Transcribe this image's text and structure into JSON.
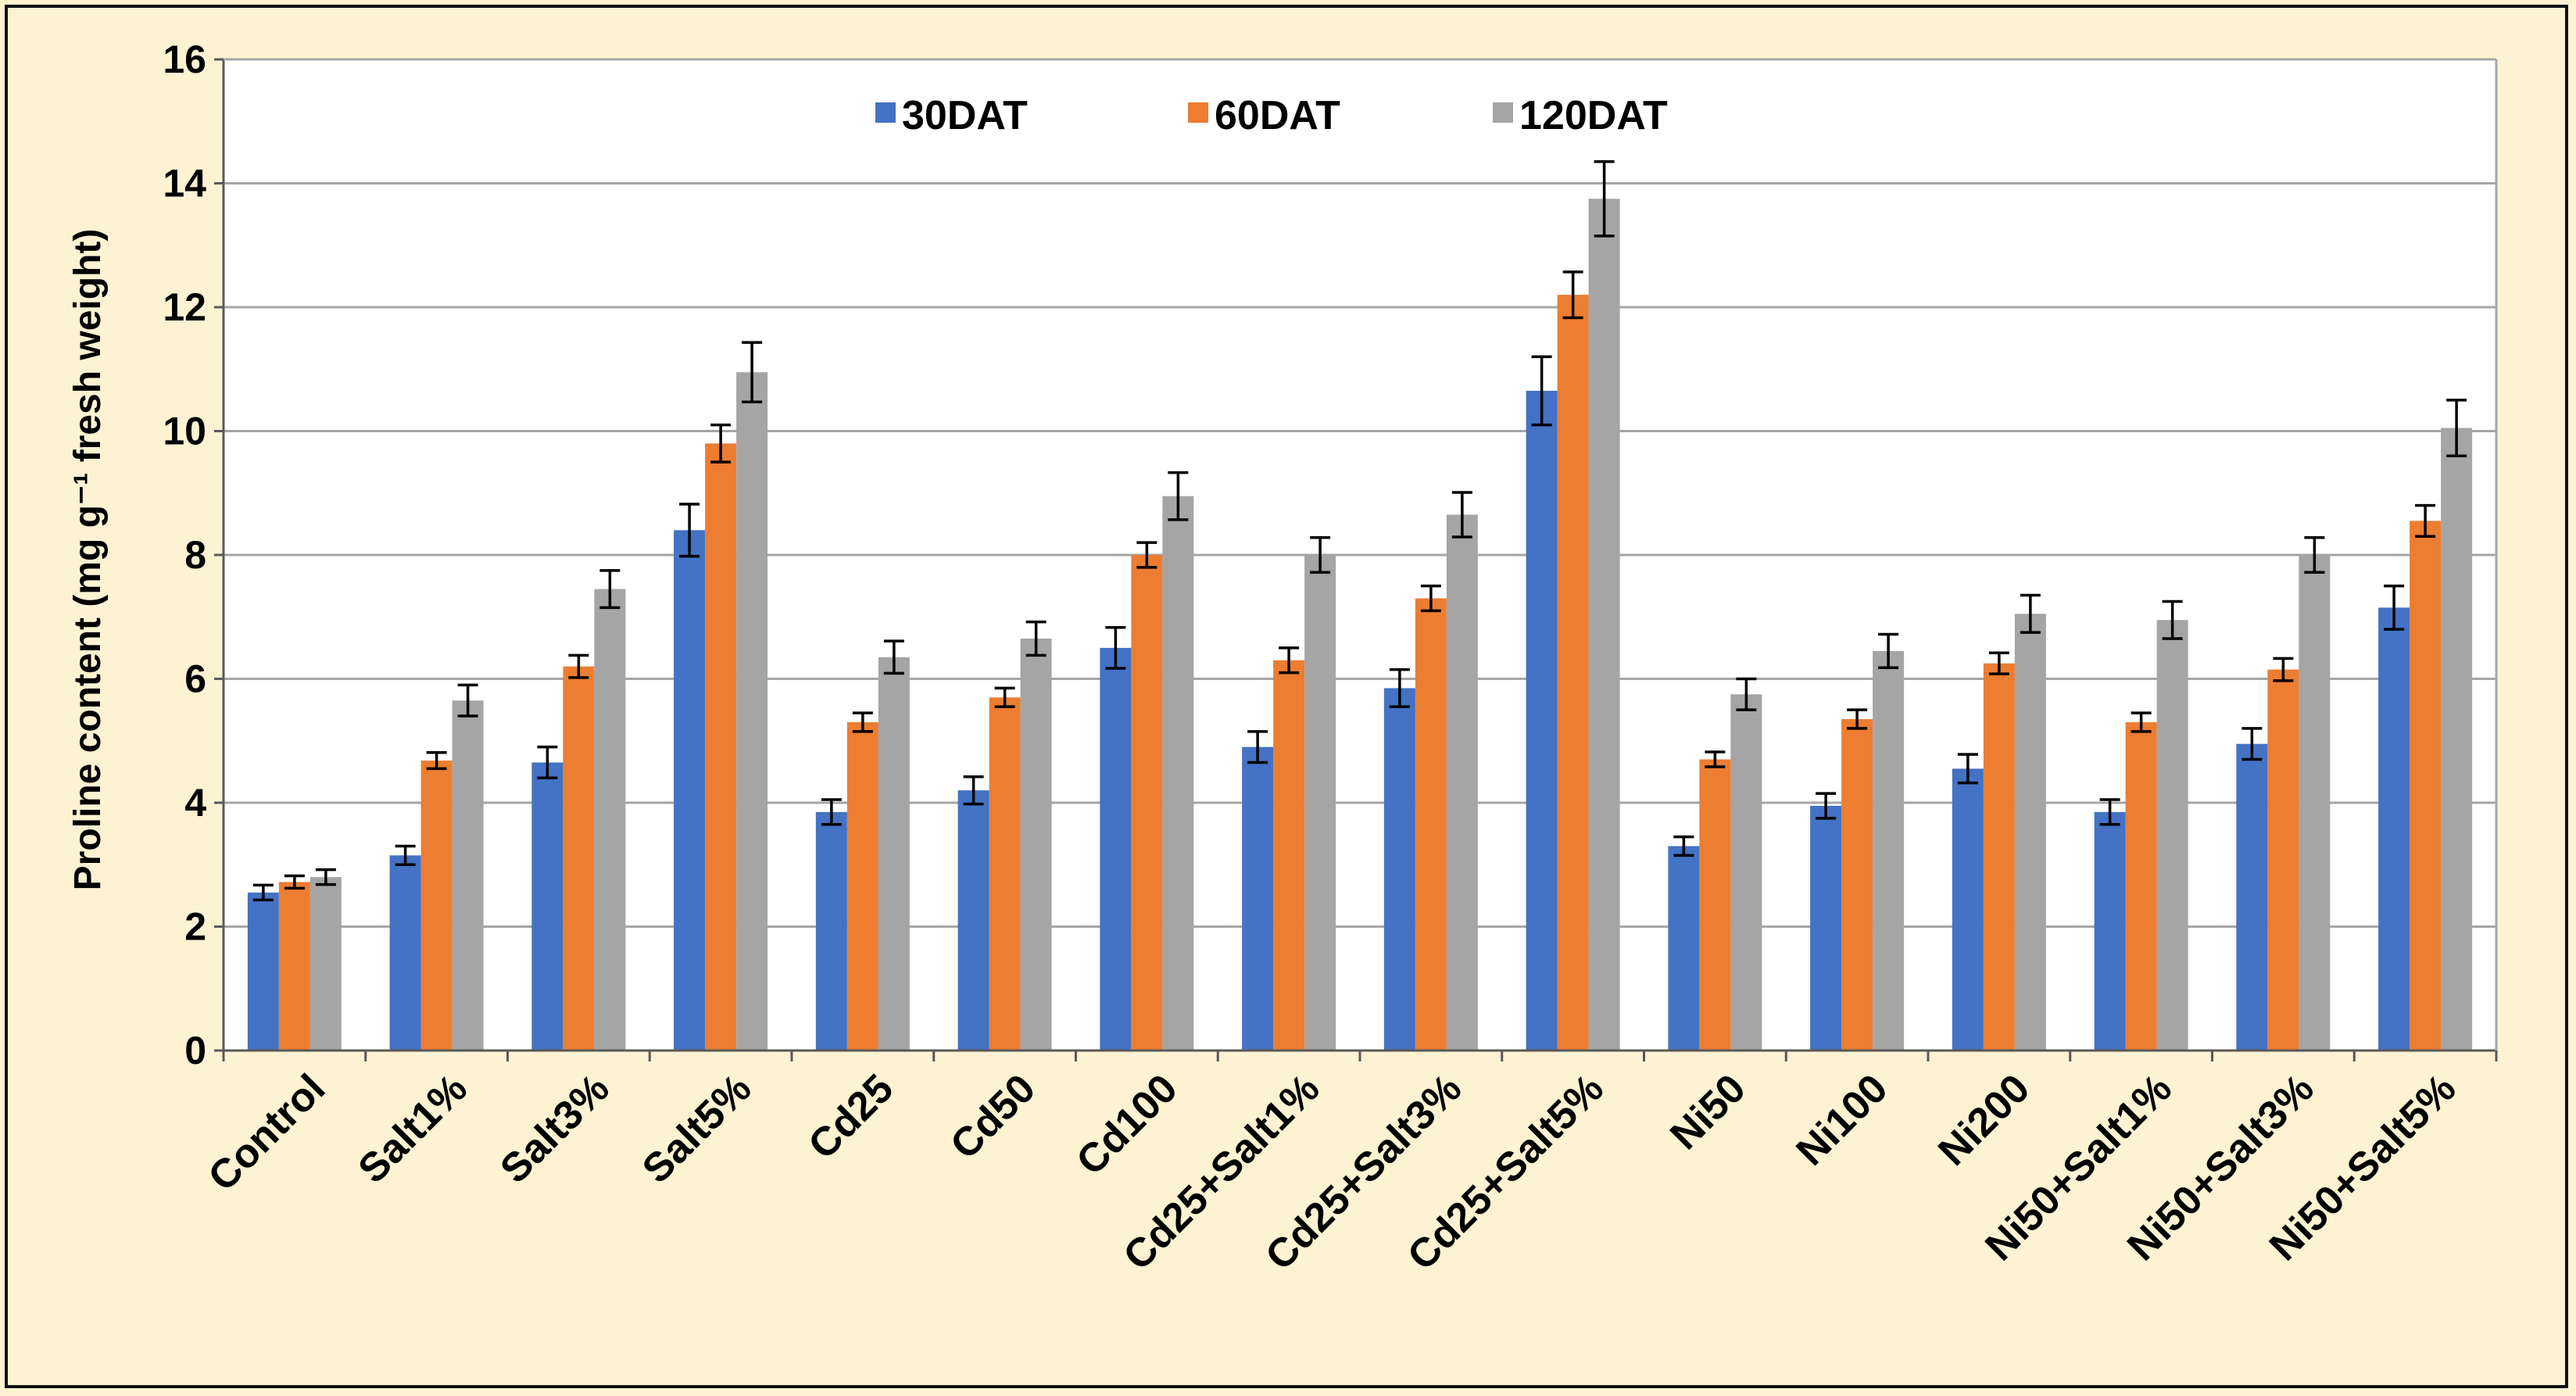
{
  "chart_data": {
    "type": "bar",
    "title": "",
    "xlabel": "",
    "ylabel": "Proline content (mg g⁻¹ fresh weight)",
    "ylim": [
      0,
      16
    ],
    "yticks": [
      0,
      2,
      4,
      6,
      8,
      10,
      12,
      14,
      16
    ],
    "grid": true,
    "legend_position": "top-center",
    "categories": [
      "Control",
      "Salt1%",
      "Salt3%",
      "Salt5%",
      "Cd25",
      "Cd50",
      "Cd100",
      "Cd25+Salt1%",
      "Cd25+Salt3%",
      "Cd25+Salt5%",
      "Ni50",
      "Ni100",
      "Ni200",
      "Ni50+Salt1%",
      "Ni50+Salt3%",
      "Ni50+Salt5%"
    ],
    "series": [
      {
        "name": "30DAT",
        "color": "#4472c4",
        "values": [
          2.55,
          3.15,
          4.65,
          8.4,
          3.85,
          4.2,
          6.5,
          4.9,
          5.85,
          10.65,
          3.3,
          3.95,
          4.55,
          3.85,
          4.95,
          7.15
        ],
        "errors": [
          0.12,
          0.15,
          0.25,
          0.42,
          0.2,
          0.22,
          0.33,
          0.25,
          0.3,
          0.55,
          0.15,
          0.2,
          0.23,
          0.2,
          0.25,
          0.35
        ]
      },
      {
        "name": "60DAT",
        "color": "#ed7d31",
        "values": [
          2.72,
          4.68,
          6.2,
          9.8,
          5.3,
          5.7,
          8.0,
          6.3,
          7.3,
          12.2,
          4.7,
          5.35,
          6.25,
          5.3,
          6.15,
          8.55
        ],
        "errors": [
          0.1,
          0.13,
          0.18,
          0.3,
          0.15,
          0.15,
          0.2,
          0.2,
          0.2,
          0.37,
          0.12,
          0.15,
          0.17,
          0.15,
          0.18,
          0.25
        ]
      },
      {
        "name": "120DAT",
        "color": "#a5a5a5",
        "values": [
          2.8,
          5.65,
          7.45,
          10.95,
          6.35,
          6.65,
          8.95,
          8.0,
          8.65,
          13.75,
          5.75,
          6.45,
          7.05,
          6.95,
          8.0,
          10.05
        ],
        "errors": [
          0.12,
          0.25,
          0.3,
          0.48,
          0.26,
          0.27,
          0.38,
          0.28,
          0.36,
          0.6,
          0.25,
          0.27,
          0.3,
          0.3,
          0.28,
          0.45
        ]
      }
    ]
  }
}
